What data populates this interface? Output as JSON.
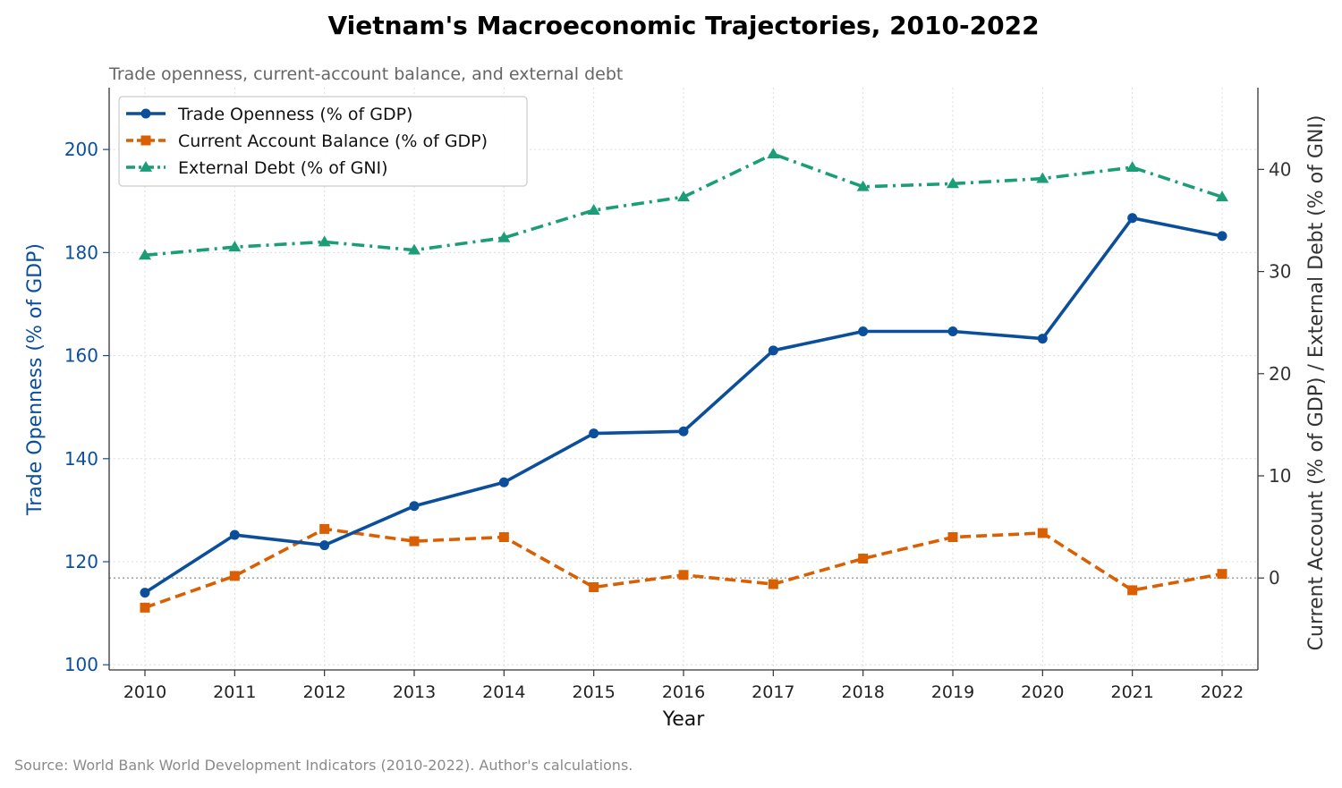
{
  "title": "Vietnam's Macroeconomic Trajectories, 2010-2022",
  "subtitle": "Trade openness, current-account balance, and external debt",
  "source": "Source: World Bank World Development Indicators (2010-2022). Author's calculations.",
  "chart_data": {
    "type": "line",
    "x": [
      2010,
      2011,
      2012,
      2013,
      2014,
      2015,
      2016,
      2017,
      2018,
      2019,
      2020,
      2021,
      2022
    ],
    "xlabel": "Year",
    "ylabel_left": "Trade Openness (% of GDP)",
    "ylabel_right": "Current Account (% of GDP)  /  External Debt (% of GNI)",
    "ylim_left": [
      99,
      212
    ],
    "ylim_right": [
      -9,
      48
    ],
    "yticks_left": [
      100,
      120,
      140,
      160,
      180,
      200
    ],
    "yticks_right": [
      0,
      10,
      20,
      30,
      40
    ],
    "grid": true,
    "zero_line_right": 0,
    "legend_position": "top-left",
    "series": [
      {
        "name": "Trade Openness (% of GDP)",
        "axis": "left",
        "color": "#0b4f9c",
        "marker": "circle",
        "dash": "solid",
        "values": [
          114.0,
          125.2,
          123.2,
          130.8,
          135.4,
          144.9,
          145.3,
          161.0,
          164.7,
          164.7,
          163.3,
          186.7,
          183.2
        ]
      },
      {
        "name": "Current Account Balance (% of GDP)",
        "axis": "right",
        "color": "#d95f02",
        "marker": "square",
        "dash": "dashed",
        "values": [
          -2.9,
          0.2,
          4.8,
          3.6,
          4.0,
          -0.9,
          0.3,
          -0.6,
          1.9,
          4.0,
          4.4,
          -1.2,
          0.4
        ]
      },
      {
        "name": "External Debt (% of GNI)",
        "axis": "right",
        "color": "#1b9e77",
        "marker": "triangle",
        "dash": "dashdot",
        "values": [
          31.6,
          32.4,
          32.9,
          32.1,
          33.3,
          36.0,
          37.3,
          41.5,
          38.3,
          38.6,
          39.1,
          40.2,
          37.3
        ]
      }
    ]
  }
}
